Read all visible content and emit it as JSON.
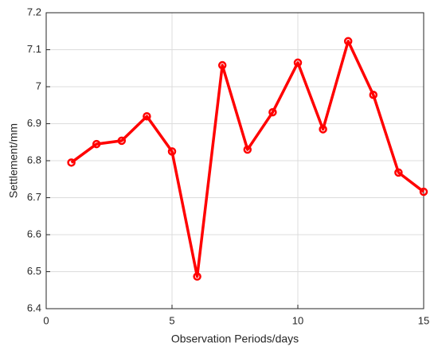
{
  "chart_data": {
    "type": "line",
    "xlabel": "Observation Periods/days",
    "ylabel": "Settlement/mm",
    "x": [
      1,
      2,
      3,
      4,
      5,
      6,
      7,
      8,
      9,
      10,
      11,
      12,
      13,
      14,
      15
    ],
    "values": [
      6.795,
      6.845,
      6.854,
      6.92,
      6.825,
      6.487,
      7.058,
      6.83,
      6.931,
      7.065,
      6.885,
      7.123,
      6.978,
      6.768,
      6.716
    ],
    "color": "#ff0000",
    "xlim": [
      0,
      15
    ],
    "xticks": [
      0,
      5,
      10,
      15
    ],
    "ylim": [
      6.4,
      7.2
    ],
    "yticks": [
      6.4,
      6.5,
      6.6,
      6.7,
      6.8,
      6.9,
      7,
      7.1,
      7.2
    ],
    "grid": true
  }
}
